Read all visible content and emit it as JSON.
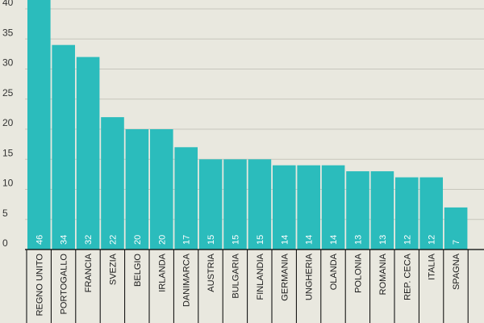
{
  "colors": {
    "background": "#e9e8df",
    "bar": "#2bbcbc",
    "grid": "#c7c6bc",
    "axis": "#000000",
    "value_label": "#ffffff"
  },
  "chart_data": {
    "type": "bar",
    "categories": [
      "REGNO UNITO",
      "PORTOGALLO",
      "FRANCIA",
      "SVEZIA",
      "BELGIO",
      "IRLANDA",
      "DANIMARCA",
      "AUSTRIA",
      "BULGARIA",
      "FINLANDIA",
      "GERMANIA",
      "UNGHERIA",
      "OLANDA",
      "POLONIA",
      "ROMANIA",
      "REP. CECA",
      "ITALIA",
      "SPAGNA"
    ],
    "values": [
      46,
      34,
      32,
      22,
      20,
      20,
      17,
      15,
      15,
      15,
      14,
      14,
      14,
      13,
      13,
      12,
      12,
      7
    ],
    "value_labels": [
      "46",
      "34",
      "32",
      "22",
      "20",
      "20",
      "17",
      "15",
      "15",
      "15",
      "14",
      "14",
      "14",
      "13",
      "13",
      "12",
      "12",
      "7"
    ],
    "yticks": [
      "0",
      "5",
      "10",
      "15",
      "20",
      "25",
      "30",
      "35",
      "40"
    ],
    "ylim": [
      0,
      40
    ],
    "grid": true,
    "orientation": "vertical",
    "labels_rotation": "vertical"
  }
}
